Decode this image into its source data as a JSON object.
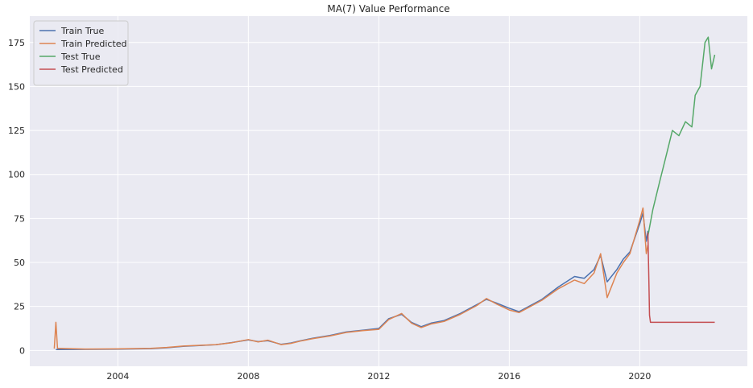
{
  "chart_data": {
    "type": "line",
    "title": "MA(7) Value Performance",
    "xlabel": "",
    "ylabel": "",
    "xlim": [
      2001.3,
      2023.3
    ],
    "ylim": [
      -9,
      190
    ],
    "x_ticks": [
      2004,
      2008,
      2012,
      2016,
      2020
    ],
    "x_tick_labels": [
      "2004",
      "2008",
      "2012",
      "2016",
      "2020"
    ],
    "y_ticks": [
      0,
      25,
      50,
      75,
      100,
      125,
      150,
      175
    ],
    "y_tick_labels": [
      "0",
      "25",
      "50",
      "75",
      "100",
      "125",
      "150",
      "175"
    ],
    "grid": true,
    "legend_position": "top-left",
    "colors": {
      "background": "#eaeaf2",
      "grid": "#ffffff",
      "train_true": "#4c72b0",
      "train_predicted": "#dd8452",
      "test_true": "#55a868",
      "test_predicted": "#c44e52"
    },
    "series": [
      {
        "name": "Train True",
        "color": "#4c72b0",
        "x": [
          2002.1,
          2003.0,
          2004.0,
          2005.0,
          2005.5,
          2006.0,
          2006.5,
          2007.0,
          2007.5,
          2008.0,
          2008.3,
          2008.6,
          2009.0,
          2009.3,
          2009.6,
          2010.0,
          2010.5,
          2011.0,
          2011.5,
          2012.0,
          2012.3,
          2012.7,
          2013.0,
          2013.3,
          2013.6,
          2014.0,
          2014.5,
          2015.0,
          2015.3,
          2015.6,
          2016.0,
          2016.3,
          2016.6,
          2017.0,
          2017.5,
          2018.0,
          2018.3,
          2018.6,
          2018.8,
          2019.0,
          2019.3,
          2019.5,
          2019.7,
          2020.0,
          2020.1,
          2020.2,
          2020.25
        ],
        "y": [
          0.5,
          0.6,
          0.7,
          1.0,
          1.5,
          2.3,
          2.8,
          3.2,
          4.5,
          6.0,
          5.0,
          5.5,
          3.5,
          4.2,
          5.5,
          7.0,
          8.5,
          10.5,
          11.5,
          12.5,
          18.0,
          20.5,
          16.0,
          13.5,
          15.5,
          17.0,
          21.0,
          26.0,
          29.0,
          27.0,
          24.0,
          22.0,
          25.0,
          29.0,
          36.0,
          42.0,
          41.0,
          46.0,
          54.0,
          39.0,
          46.0,
          52.0,
          56.0,
          72.0,
          78.0,
          62.0,
          68.0
        ]
      },
      {
        "name": "Train Predicted",
        "color": "#dd8452",
        "x": [
          2002.05,
          2002.1,
          2002.15,
          2003.0,
          2004.0,
          2005.0,
          2005.5,
          2006.0,
          2006.5,
          2007.0,
          2007.5,
          2008.0,
          2008.3,
          2008.6,
          2009.0,
          2009.3,
          2009.6,
          2010.0,
          2010.5,
          2011.0,
          2011.5,
          2012.0,
          2012.3,
          2012.7,
          2013.0,
          2013.3,
          2013.6,
          2014.0,
          2014.5,
          2015.0,
          2015.3,
          2015.6,
          2016.0,
          2016.3,
          2016.6,
          2017.0,
          2017.5,
          2018.0,
          2018.3,
          2018.6,
          2018.8,
          2019.0,
          2019.3,
          2019.5,
          2019.7,
          2020.0,
          2020.1,
          2020.2,
          2020.25
        ],
        "y": [
          1.0,
          16.0,
          1.2,
          0.8,
          0.9,
          1.2,
          1.7,
          2.5,
          2.9,
          3.3,
          4.4,
          6.2,
          4.8,
          5.8,
          3.3,
          4.0,
          5.3,
          6.8,
          8.2,
          10.2,
          11.2,
          12.0,
          17.5,
          21.0,
          15.5,
          13.0,
          15.0,
          16.5,
          20.5,
          25.5,
          29.5,
          26.5,
          23.0,
          21.5,
          24.5,
          28.5,
          35.0,
          40.0,
          38.0,
          44.0,
          55.0,
          30.0,
          44.0,
          50.0,
          55.0,
          74.0,
          81.0,
          55.0,
          60.0
        ]
      },
      {
        "name": "Test True",
        "color": "#55a868",
        "x": [
          2020.25,
          2020.4,
          2020.6,
          2020.8,
          2021.0,
          2021.2,
          2021.4,
          2021.6,
          2021.7,
          2021.85,
          2022.0,
          2022.1,
          2022.2,
          2022.3
        ],
        "y": [
          65.0,
          80.0,
          95.0,
          110.0,
          125.0,
          122.0,
          130.0,
          127.0,
          145.0,
          150.0,
          175.0,
          178.0,
          160.0,
          168.0
        ]
      },
      {
        "name": "Test Predicted",
        "color": "#c44e52",
        "x": [
          2020.25,
          2020.28,
          2020.3,
          2020.33,
          2020.38,
          2022.3
        ],
        "y": [
          67.0,
          40.0,
          20.0,
          16.0,
          16.0,
          16.0
        ]
      }
    ]
  }
}
